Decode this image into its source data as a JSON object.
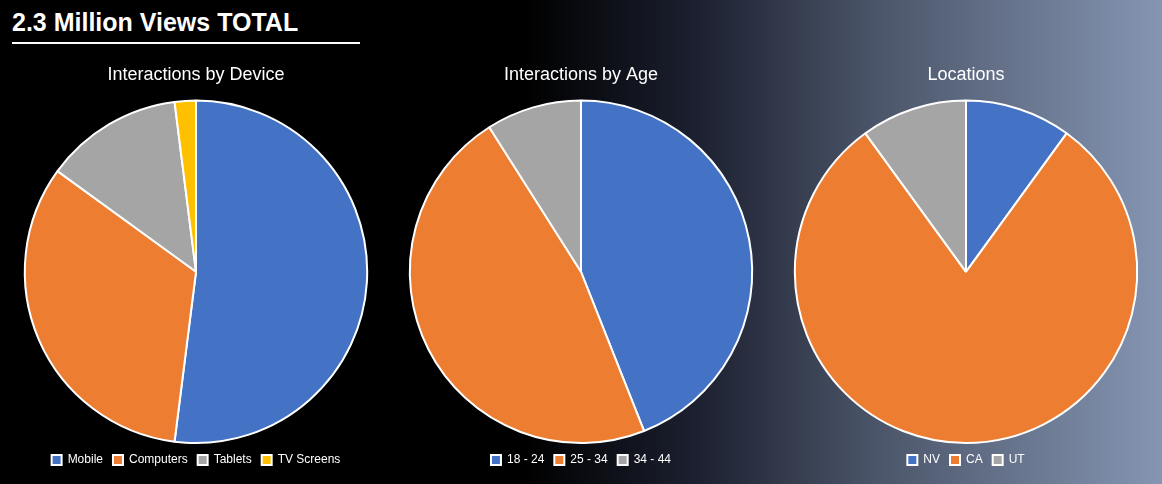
{
  "title": "2.3 Million Views TOTAL",
  "chart_data": [
    {
      "type": "pie",
      "title": "Interactions by Device",
      "categories": [
        "Mobile",
        "Computers",
        "Tablets",
        "TV Screens"
      ],
      "values": [
        52,
        33,
        13,
        2
      ],
      "colors": [
        "#4472c4",
        "#ed7d31",
        "#a5a5a5",
        "#ffc000"
      ],
      "legend": "bottom"
    },
    {
      "type": "pie",
      "title": "Interactions by Age",
      "categories": [
        "18 - 24",
        "25 - 34",
        "34 - 44"
      ],
      "values": [
        44,
        47,
        9
      ],
      "colors": [
        "#4472c4",
        "#ed7d31",
        "#a5a5a5"
      ],
      "legend": "bottom"
    },
    {
      "type": "pie",
      "title": "Locations",
      "categories": [
        "NV",
        "CA",
        "UT"
      ],
      "values": [
        10,
        80,
        10
      ],
      "colors": [
        "#4472c4",
        "#ed7d31",
        "#a5a5a5"
      ],
      "legend": "bottom"
    }
  ]
}
